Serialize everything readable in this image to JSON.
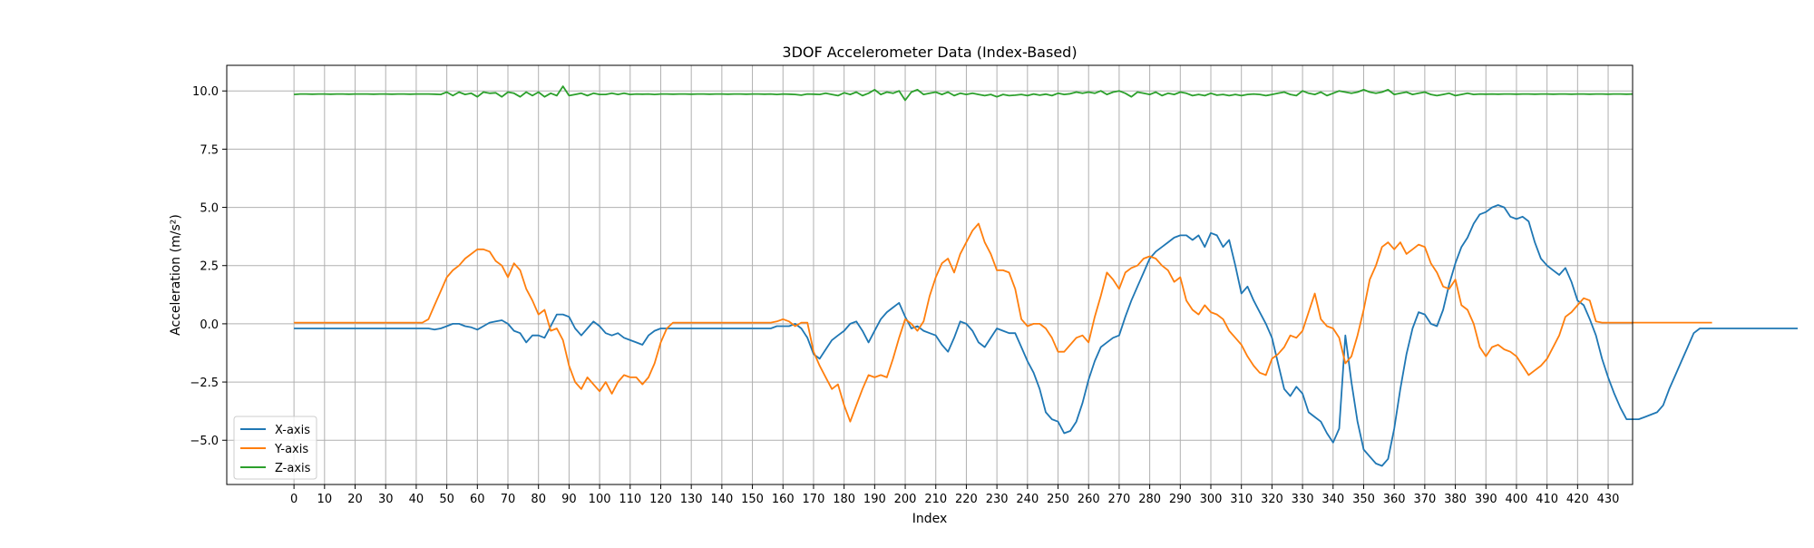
{
  "chart_data": {
    "type": "line",
    "title": "3DOF Accelerometer Data (Index-Based)",
    "xlabel": "Index",
    "ylabel": "Acceleration (m/s²)",
    "xlim": [
      -22,
      438
    ],
    "ylim": [
      -6.9,
      11.1
    ],
    "xticks": [
      0,
      10,
      20,
      30,
      40,
      50,
      60,
      70,
      80,
      90,
      100,
      110,
      120,
      130,
      140,
      150,
      160,
      170,
      180,
      190,
      200,
      210,
      220,
      230,
      240,
      250,
      260,
      270,
      280,
      290,
      300,
      310,
      320,
      330,
      340,
      350,
      360,
      370,
      380,
      390,
      400,
      410,
      420,
      430
    ],
    "yticks": [
      -5.0,
      -2.5,
      0.0,
      2.5,
      5.0,
      7.5,
      10.0
    ],
    "ytick_labels": [
      "−5.0",
      "−2.5",
      "0.0",
      "2.5",
      "5.0",
      "7.5",
      "10.0"
    ],
    "grid": true,
    "legend_position": "lower-left",
    "x_step": 2,
    "series": [
      {
        "name": "X-axis",
        "color": "#1f77b4",
        "values": [
          -0.2,
          -0.2,
          -0.2,
          -0.2,
          -0.2,
          -0.2,
          -0.2,
          -0.2,
          -0.2,
          -0.2,
          -0.2,
          -0.2,
          -0.2,
          -0.2,
          -0.2,
          -0.2,
          -0.2,
          -0.2,
          -0.2,
          -0.2,
          -0.2,
          -0.2,
          -0.2,
          -0.25,
          -0.2,
          -0.1,
          0.0,
          0.0,
          -0.1,
          -0.15,
          -0.25,
          -0.1,
          0.05,
          0.1,
          0.15,
          0.0,
          -0.3,
          -0.4,
          -0.8,
          -0.5,
          -0.5,
          -0.6,
          -0.1,
          0.4,
          0.4,
          0.3,
          -0.2,
          -0.5,
          -0.2,
          0.1,
          -0.1,
          -0.4,
          -0.5,
          -0.4,
          -0.6,
          -0.7,
          -0.8,
          -0.9,
          -0.5,
          -0.3,
          -0.2,
          -0.2,
          -0.2,
          -0.2,
          -0.2,
          -0.2,
          -0.2,
          -0.2,
          -0.2,
          -0.2,
          -0.2,
          -0.2,
          -0.2,
          -0.2,
          -0.2,
          -0.2,
          -0.2,
          -0.2,
          -0.2,
          -0.1,
          -0.1,
          -0.1,
          0.0,
          -0.2,
          -0.6,
          -1.3,
          -1.5,
          -1.1,
          -0.7,
          -0.5,
          -0.3,
          0.0,
          0.1,
          -0.3,
          -0.8,
          -0.3,
          0.2,
          0.5,
          0.7,
          0.9,
          0.3,
          -0.2,
          -0.1,
          -0.3,
          -0.4,
          -0.5,
          -0.9,
          -1.2,
          -0.6,
          0.1,
          0.0,
          -0.3,
          -0.8,
          -1.0,
          -0.6,
          -0.2,
          -0.3,
          -0.4,
          -0.4,
          -1.0,
          -1.6,
          -2.1,
          -2.8,
          -3.8,
          -4.1,
          -4.2,
          -4.7,
          -4.6,
          -4.2,
          -3.4,
          -2.4,
          -1.6,
          -1.0,
          -0.8,
          -0.6,
          -0.5,
          0.3,
          1.0,
          1.6,
          2.2,
          2.8,
          3.1,
          3.3,
          3.5,
          3.7,
          3.8,
          3.8,
          3.6,
          3.8,
          3.3,
          3.9,
          3.8,
          3.3,
          3.6,
          2.5,
          1.3,
          1.6,
          1.0,
          0.5,
          0.0,
          -0.6,
          -1.7,
          -2.8,
          -3.1,
          -2.7,
          -3.0,
          -3.8,
          -4.0,
          -4.2,
          -4.7,
          -5.1,
          -4.5,
          -0.5,
          -2.5,
          -4.2,
          -5.4,
          -5.7,
          -6.0,
          -6.1,
          -5.8,
          -4.5,
          -2.8,
          -1.3,
          -0.2,
          0.5,
          0.4,
          0.0,
          -0.1,
          0.6,
          1.7,
          2.6,
          3.3,
          3.7,
          4.3,
          4.7,
          4.8,
          5.0,
          5.1,
          5.0,
          4.6,
          4.5,
          4.6,
          4.4,
          3.5,
          2.8,
          2.5,
          2.3,
          2.1,
          2.4,
          1.8,
          1.0,
          0.8,
          0.2,
          -0.5,
          -1.5,
          -2.3,
          -3.0,
          -3.6,
          -4.1,
          -4.1,
          -4.1,
          -4.0,
          -3.9,
          -3.8,
          -3.5,
          -2.8,
          -2.2,
          -1.6,
          -1.0,
          -0.4,
          -0.2,
          -0.2,
          -0.2,
          -0.2,
          -0.2,
          -0.2,
          -0.2,
          -0.2,
          -0.2,
          -0.2,
          -0.2,
          -0.2,
          -0.2,
          -0.2,
          -0.2,
          -0.2,
          -0.2
        ]
      },
      {
        "name": "Y-axis",
        "color": "#ff7f0e",
        "values": [
          0.05,
          0.05,
          0.05,
          0.05,
          0.05,
          0.05,
          0.05,
          0.05,
          0.05,
          0.05,
          0.05,
          0.05,
          0.05,
          0.05,
          0.05,
          0.05,
          0.05,
          0.05,
          0.05,
          0.05,
          0.05,
          0.05,
          0.2,
          0.8,
          1.4,
          2.0,
          2.3,
          2.5,
          2.8,
          3.0,
          3.2,
          3.2,
          3.1,
          2.7,
          2.5,
          2.0,
          2.6,
          2.3,
          1.5,
          1.0,
          0.4,
          0.6,
          -0.3,
          -0.2,
          -0.7,
          -1.8,
          -2.5,
          -2.8,
          -2.3,
          -2.6,
          -2.9,
          -2.5,
          -3.0,
          -2.5,
          -2.2,
          -2.3,
          -2.3,
          -2.6,
          -2.3,
          -1.7,
          -0.8,
          -0.2,
          0.05,
          0.05,
          0.05,
          0.05,
          0.05,
          0.05,
          0.05,
          0.05,
          0.05,
          0.05,
          0.05,
          0.05,
          0.05,
          0.05,
          0.05,
          0.05,
          0.05,
          0.1,
          0.2,
          0.1,
          -0.1,
          0.05,
          0.05,
          -1.2,
          -1.8,
          -2.3,
          -2.8,
          -2.6,
          -3.5,
          -4.2,
          -3.5,
          -2.8,
          -2.2,
          -2.3,
          -2.2,
          -2.3,
          -1.5,
          -0.6,
          0.2,
          0.0,
          -0.3,
          0.1,
          1.2,
          2.0,
          2.6,
          2.8,
          2.2,
          3.0,
          3.5,
          4.0,
          4.3,
          3.5,
          3.0,
          2.3,
          2.3,
          2.2,
          1.5,
          0.2,
          -0.1,
          0.0,
          0.0,
          -0.2,
          -0.6,
          -1.2,
          -1.2,
          -0.9,
          -0.6,
          -0.5,
          -0.8,
          0.3,
          1.2,
          2.2,
          1.9,
          1.5,
          2.2,
          2.4,
          2.5,
          2.8,
          2.9,
          2.8,
          2.5,
          2.3,
          1.8,
          2.0,
          1.0,
          0.6,
          0.4,
          0.8,
          0.5,
          0.4,
          0.2,
          -0.3,
          -0.6,
          -0.9,
          -1.4,
          -1.8,
          -2.1,
          -2.2,
          -1.5,
          -1.3,
          -1.0,
          -0.5,
          -0.6,
          -0.3,
          0.5,
          1.3,
          0.2,
          -0.1,
          -0.2,
          -0.6,
          -1.7,
          -1.4,
          -0.5,
          0.6,
          1.9,
          2.5,
          3.3,
          3.5,
          3.2,
          3.5,
          3.0,
          3.2,
          3.4,
          3.3,
          2.6,
          2.2,
          1.6,
          1.5,
          1.9,
          0.8,
          0.6,
          0.0,
          -1.0,
          -1.4,
          -1.0,
          -0.9,
          -1.1,
          -1.2,
          -1.4,
          -1.8,
          -2.2,
          -2.0,
          -1.8,
          -1.5,
          -1.0,
          -0.5,
          0.3,
          0.5,
          0.8,
          1.1,
          1.0,
          0.1,
          0.05,
          0.05,
          0.05,
          0.05,
          0.05,
          0.05,
          0.05,
          0.05,
          0.05,
          0.05,
          0.05,
          0.05,
          0.05,
          0.05,
          0.05,
          0.05,
          0.05,
          0.05,
          0.05
        ]
      },
      {
        "name": "Z-axis",
        "color": "#2ca02c",
        "values": [
          9.85,
          9.87,
          9.87,
          9.86,
          9.87,
          9.87,
          9.86,
          9.87,
          9.87,
          9.86,
          9.87,
          9.87,
          9.87,
          9.86,
          9.87,
          9.87,
          9.86,
          9.87,
          9.87,
          9.86,
          9.87,
          9.87,
          9.87,
          9.86,
          9.85,
          9.95,
          9.8,
          9.95,
          9.85,
          9.9,
          9.75,
          9.95,
          9.9,
          9.92,
          9.75,
          9.95,
          9.9,
          9.75,
          9.95,
          9.8,
          9.95,
          9.75,
          9.9,
          9.8,
          10.2,
          9.8,
          9.85,
          9.9,
          9.8,
          9.9,
          9.85,
          9.85,
          9.9,
          9.85,
          9.9,
          9.85,
          9.87,
          9.86,
          9.87,
          9.85,
          9.87,
          9.87,
          9.86,
          9.87,
          9.87,
          9.86,
          9.87,
          9.87,
          9.86,
          9.87,
          9.87,
          9.86,
          9.87,
          9.87,
          9.86,
          9.87,
          9.87,
          9.86,
          9.87,
          9.85,
          9.87,
          9.86,
          9.85,
          9.82,
          9.87,
          9.86,
          9.85,
          9.9,
          9.85,
          9.8,
          9.92,
          9.85,
          9.95,
          9.8,
          9.9,
          10.05,
          9.85,
          9.95,
          9.9,
          10.0,
          9.6,
          9.95,
          10.05,
          9.85,
          9.9,
          9.95,
          9.85,
          9.95,
          9.8,
          9.9,
          9.85,
          9.9,
          9.85,
          9.8,
          9.85,
          9.75,
          9.85,
          9.8,
          9.82,
          9.85,
          9.8,
          9.87,
          9.82,
          9.86,
          9.8,
          9.9,
          9.85,
          9.88,
          9.95,
          9.9,
          9.95,
          9.9,
          10.0,
          9.85,
          9.95,
          10.0,
          9.9,
          9.75,
          9.95,
          9.9,
          9.85,
          9.95,
          9.8,
          9.9,
          9.85,
          9.95,
          9.9,
          9.8,
          9.85,
          9.8,
          9.9,
          9.82,
          9.85,
          9.8,
          9.85,
          9.8,
          9.85,
          9.87,
          9.85,
          9.8,
          9.85,
          9.9,
          9.95,
          9.85,
          9.8,
          10.0,
          9.9,
          9.85,
          9.95,
          9.8,
          9.9,
          10.0,
          9.95,
          9.9,
          9.95,
          10.05,
          9.95,
          9.9,
          9.95,
          10.05,
          9.85,
          9.9,
          9.95,
          9.85,
          9.9,
          9.95,
          9.85,
          9.8,
          9.85,
          9.9,
          9.8,
          9.85,
          9.9,
          9.85,
          9.87,
          9.86,
          9.87,
          9.86,
          9.87,
          9.87,
          9.86,
          9.87,
          9.87,
          9.86,
          9.87,
          9.87,
          9.86,
          9.87,
          9.87,
          9.86,
          9.87,
          9.87,
          9.86,
          9.87,
          9.87,
          9.86,
          9.87,
          9.87,
          9.86,
          9.87
        ]
      }
    ]
  }
}
